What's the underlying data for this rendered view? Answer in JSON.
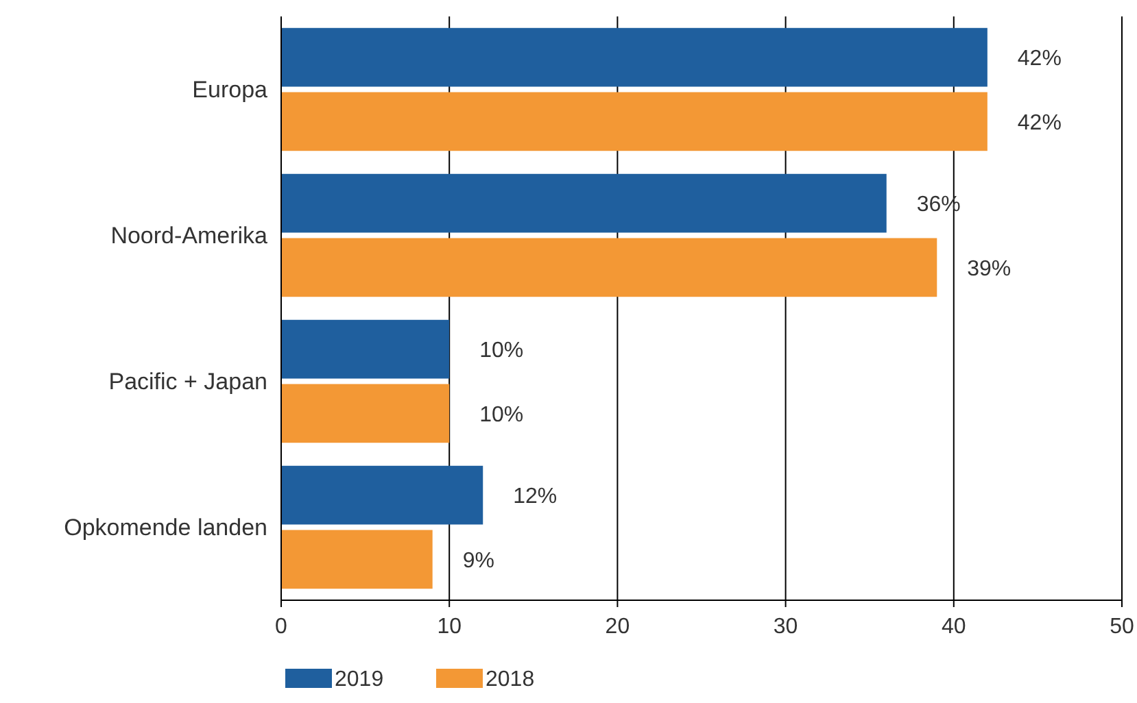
{
  "chart_data": {
    "type": "bar",
    "orientation": "horizontal",
    "categories": [
      "Europa",
      "Noord-Amerika",
      "Pacific + Japan",
      "Opkomende landen"
    ],
    "series": [
      {
        "name": "2019",
        "color": "#1f5f9e",
        "values": [
          42,
          36,
          10,
          12
        ],
        "value_labels": [
          "42%",
          "36%",
          "10%",
          "12%"
        ]
      },
      {
        "name": "2018",
        "color": "#f39835",
        "values": [
          42,
          39,
          10,
          9
        ],
        "value_labels": [
          "42%",
          "39%",
          "10%",
          "9%"
        ]
      }
    ],
    "xlim": [
      0,
      50
    ],
    "xticks": [
      0,
      10,
      20,
      30,
      40,
      50
    ],
    "grid": "x",
    "legend": "bottom left"
  }
}
